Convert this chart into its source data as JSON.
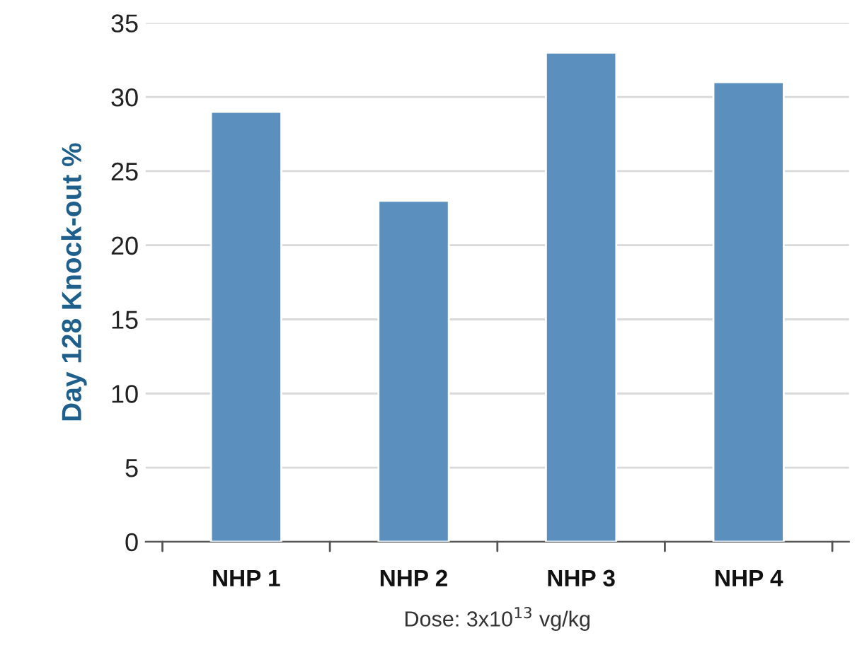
{
  "chart_data": {
    "type": "bar",
    "categories": [
      "NHP 1",
      "NHP 2",
      "NHP 3",
      "NHP 4"
    ],
    "values": [
      29,
      23,
      33,
      31
    ],
    "color": "#5b8fbd",
    "ylabel": "Day 128 Knock-out %",
    "xlabel": "Dose: 3x10$^{13}$ vg/kg",
    "ylim": [
      0,
      35
    ],
    "yticks": [
      0,
      5,
      10,
      15,
      20,
      25,
      30,
      35
    ],
    "grid": "y"
  }
}
